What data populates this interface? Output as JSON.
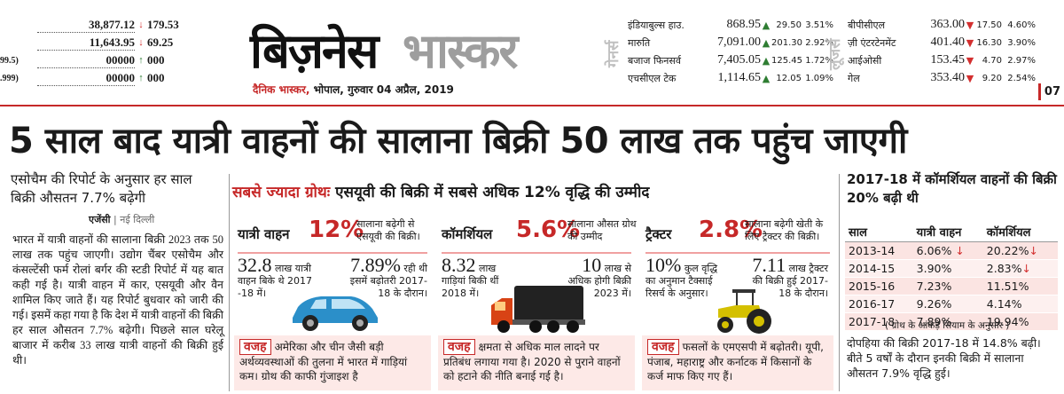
{
  "ticker_left": [
    {
      "label": "",
      "value": "38,877.12",
      "dir": "down",
      "change": "179.53"
    },
    {
      "label": "",
      "value": "11,643.95",
      "dir": "down",
      "change": "69.25"
    },
    {
      "label": "99.5)",
      "value": "00000",
      "dir": "up",
      "change": "000"
    },
    {
      "label": ".999)",
      "value": "00000",
      "dir": "up",
      "change": "000"
    }
  ],
  "masthead": {
    "logo_part1": "बिज़नेस",
    "logo_part2": "भास्कर",
    "publication": "दैनिक भास्कर,",
    "dateline": " भोपाल, गुरुवार 04 अप्रैल, 2019",
    "page_number": "07"
  },
  "gainers_label": "गेनर्स",
  "losers_label": "लूजर्स",
  "gainers": [
    {
      "name": "इंडियाबुल्स हाउ.",
      "price": "868.95",
      "change": "29.50",
      "pct": "3.51%"
    },
    {
      "name": "मारुति",
      "price": "7,091.00",
      "change": "201.30",
      "pct": "2.92%"
    },
    {
      "name": "बजाज फिनसर्व",
      "price": "7,405.05",
      "change": "125.45",
      "pct": "1.72%"
    },
    {
      "name": "एचसीएल टेक",
      "price": "1,114.65",
      "change": "12.05",
      "pct": "1.09%"
    }
  ],
  "losers": [
    {
      "name": "बीपीसीएल",
      "price": "363.00",
      "change": "17.50",
      "pct": "4.60%"
    },
    {
      "name": "ज़ी एंटरटेनमेंट",
      "price": "401.40",
      "change": "16.30",
      "pct": "3.90%"
    },
    {
      "name": "आईओसी",
      "price": "153.45",
      "change": "4.70",
      "pct": "2.97%"
    },
    {
      "name": "गेल",
      "price": "353.40",
      "change": "9.20",
      "pct": "2.54%"
    }
  ],
  "headline": "5 साल बाद यात्री वाहनों की सालाना बिक्री 50 लाख तक पहुंच जाएगी",
  "lead": "एसोचैम की रिपोर्ट के अनुसार हर साल बिक्री औसतन 7.7% बढ़ेगी",
  "byline": {
    "agency": "एजेंसी",
    "city": " | नई दिल्ली"
  },
  "left_body": "भारत में यात्री वाहनों की सालाना बिक्री 2023 तक 50 लाख तक पहुंच जाएगी। उद्योग चैंबर एसोचैम और कंसल्टेंसी फर्म रोलां बर्गर की स्टडी रिपोर्ट में यह बात कही गई है। यात्री वाहन में कार, एसयूवी और वैन शामिल किए जाते हैं। यह रिपोर्ट बुधवार को जारी की गई। इसमें कहा गया है कि देश में यात्री वाहनों की बिक्री हर साल औसतन 7.7% बढ़ेगी। पिछले साल घरेलू बाजार में करीब 33 लाख यात्री वाहनों की बिक्री हुई थी।",
  "growth": {
    "title_red": "सबसे ज्यादा ग्रोथः",
    "title": " एसयूवी की बिक्री में सबसे अधिक 12% वृद्धि की उम्मीद"
  },
  "cards": [
    {
      "title": "यात्री वाहन",
      "pct": "12%",
      "desc": "सालाना बढ़ेगी से एसयूवी की बिक्री।",
      "s1_big": "32.8",
      "s1_text": " लाख यात्री वाहन बिके थे 2017 -18 में।",
      "s2_big": "7.89%",
      "s2_text": " रही थी इसमें बढ़ोतरी 2017-18 के दौरान।",
      "reason_tag": "वजह",
      "reason": "अमेरिका और चीन जैसी बड़ी अर्थव्यवस्थाओं की तुलना में भारत में गाड़ियां कम। ग्रोथ की काफी गुंजाइश है"
    },
    {
      "title": "कॉमर्शियल",
      "pct": "5.6%",
      "desc": "सालाना औसत ग्रोथ की उम्मीद",
      "s1_big": "8.32",
      "s1_text": " लाख गाड़ियां बिकी थीं 2018 में।",
      "s2_big": "10",
      "s2_text": " लाख से अधिक होगी बिक्री 2023 में।",
      "reason_tag": "वजह",
      "reason": "क्षमता से अधिक माल लादने पर प्रतिबंध लगाया गया है। 2020 से पुराने वाहनों को हटाने की नीति बनाई गई है।"
    },
    {
      "title": "ट्रैक्टर",
      "pct": "2.8%",
      "desc": "सालाना बढ़ेगी खेती के लिए ट्रैक्टर की बिक्री।",
      "s1_big": "10%",
      "s1_text": " कुल वृद्धि का अनुमान टैक्साई रिसर्च के अनुसार।",
      "s2_big": "7.11",
      "s2_text": " लाख ट्रैक्टर की बिक्री हुई 2017-18 के दौरान।",
      "reason_tag": "वजह",
      "reason": "फसलों के एमएसपी में बढ़ोतरी। यूपी, पंजाब, महाराष्ट्र और कर्नाटक में किसानों के कर्ज माफ किए गए हैं।"
    }
  ],
  "right": {
    "title": "2017-18 में कॉमर्शियल वाहनों की बिक्री 20% बढ़ी थी",
    "headers": [
      "साल",
      "यात्री वाहन",
      "कॉमर्शियल"
    ],
    "rows": [
      {
        "year": "2013-14",
        "pv": "6.06%",
        "pv_dir": "down",
        "cv": "20.22%",
        "cv_dir": "down"
      },
      {
        "year": "2014-15",
        "pv": "3.90%",
        "pv_dir": "",
        "cv": "2.83%",
        "cv_dir": "down"
      },
      {
        "year": "2015-16",
        "pv": "7.23%",
        "pv_dir": "",
        "cv": "11.51%",
        "cv_dir": ""
      },
      {
        "year": "2016-17",
        "pv": "9.26%",
        "pv_dir": "",
        "cv": "4.14%",
        "cv_dir": ""
      },
      {
        "year": "2017-18",
        "pv": "7.89%",
        "pv_dir": "",
        "cv": "19.94%",
        "cv_dir": ""
      }
    ],
    "note": "( ग्रोथ के आंकड़े सियाम के अनुसार )",
    "body": "दोपहिया की बिक्री 2017-18 में 14.8% बढ़ी। बीते 5 वर्षों के दौरान इनकी बिक्री में सालाना औसतन 7.9% वृद्धि हुई।"
  },
  "colors": {
    "accent": "#c62828",
    "up": "#2e7d32",
    "down": "#d32f2f",
    "panel": "#fde9e7"
  }
}
